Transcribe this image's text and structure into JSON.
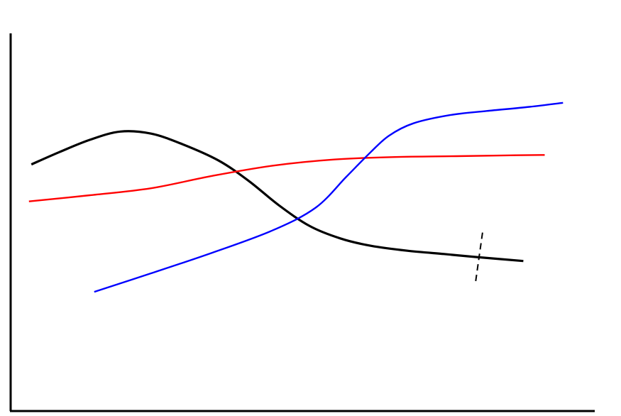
{
  "chart_data": {
    "type": "line",
    "title": "",
    "xlabel": "",
    "ylabel": "",
    "xlim": [
      0,
      10
    ],
    "ylim": [
      0,
      10
    ],
    "grid": false,
    "legend": "none",
    "series": [
      {
        "color": "#000000",
        "points": [
          [
            0.34,
            6.0
          ],
          [
            0.8,
            6.3
          ],
          [
            1.3,
            6.6
          ],
          [
            1.8,
            6.8
          ],
          [
            2.3,
            6.75
          ],
          [
            2.8,
            6.5
          ],
          [
            3.4,
            6.1
          ],
          [
            3.9,
            5.6
          ],
          [
            4.4,
            5.0
          ],
          [
            4.9,
            4.5
          ],
          [
            5.4,
            4.2
          ],
          [
            5.9,
            4.02
          ],
          [
            6.5,
            3.9
          ],
          [
            7.1,
            3.82
          ],
          [
            7.6,
            3.75
          ],
          [
            8.4,
            3.65
          ]
        ]
      },
      {
        "color": "#ff0000",
        "points": [
          [
            0.3,
            5.1
          ],
          [
            1.3,
            5.25
          ],
          [
            2.3,
            5.42
          ],
          [
            3.3,
            5.72
          ],
          [
            4.3,
            5.97
          ],
          [
            5.3,
            6.12
          ],
          [
            6.3,
            6.18
          ],
          [
            7.3,
            6.2
          ],
          [
            8.1,
            6.22
          ],
          [
            8.75,
            6.23
          ]
        ]
      },
      {
        "color": "#0000ff",
        "points": [
          [
            1.37,
            2.9
          ],
          [
            2.3,
            3.35
          ],
          [
            3.3,
            3.85
          ],
          [
            4.3,
            4.4
          ],
          [
            5.0,
            4.95
          ],
          [
            5.5,
            5.7
          ],
          [
            5.9,
            6.3
          ],
          [
            6.2,
            6.7
          ],
          [
            6.6,
            7.0
          ],
          [
            7.2,
            7.2
          ],
          [
            7.8,
            7.3
          ],
          [
            8.5,
            7.4
          ],
          [
            9.05,
            7.5
          ]
        ]
      }
    ],
    "annotations": [
      {
        "type": "dashed-tick",
        "x": 7.65,
        "y": 3.72
      }
    ]
  }
}
